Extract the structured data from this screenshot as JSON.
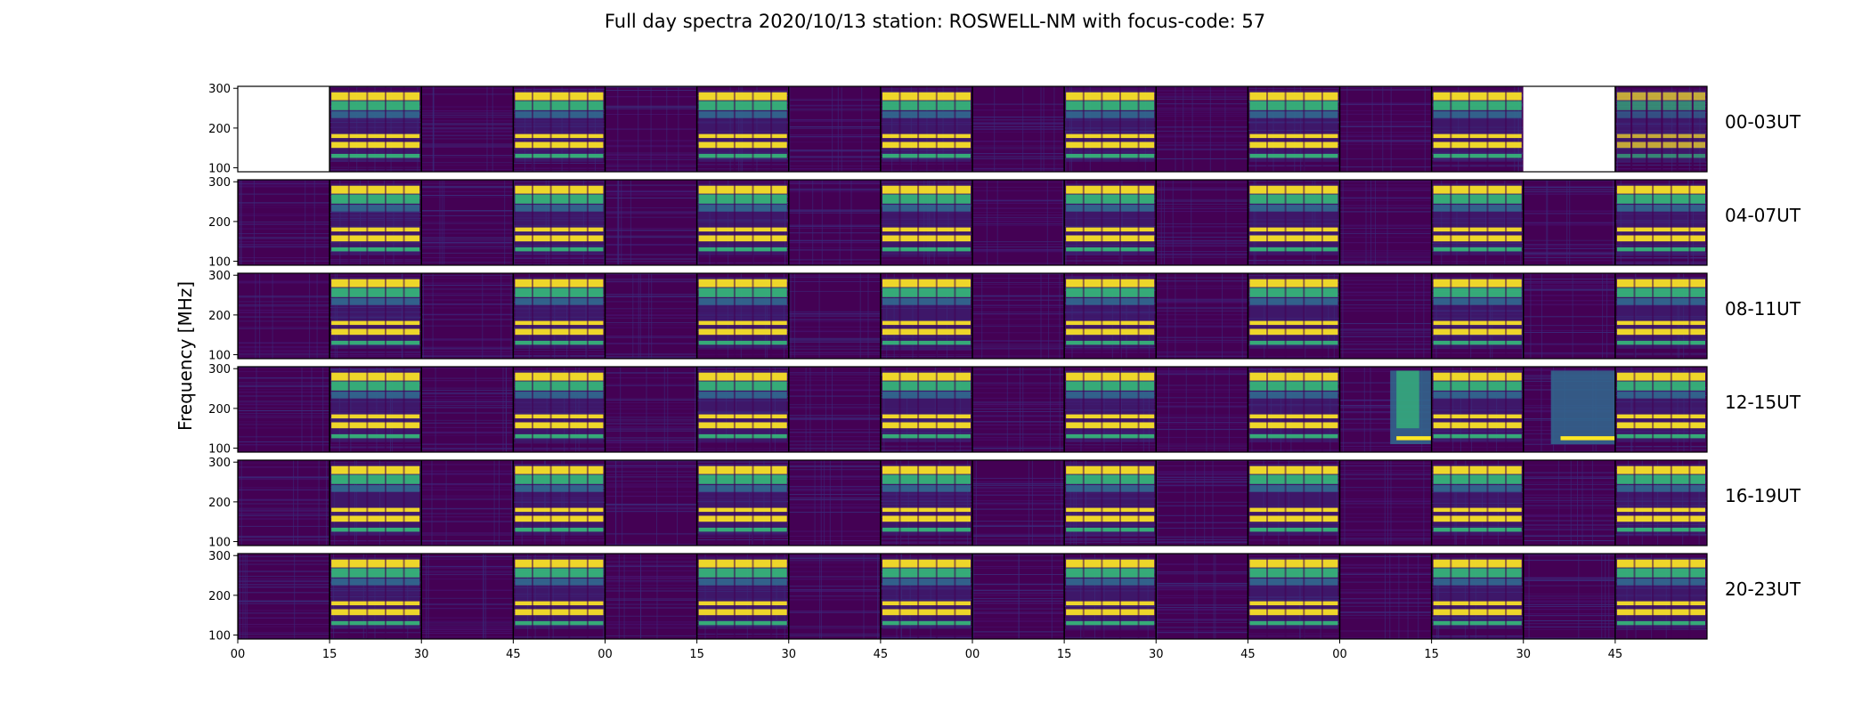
{
  "chart_data": {
    "type": "heatmap",
    "title": "Full day spectra 2020/10/13 station: ROSWELL-NM with focus-code: 57",
    "ylabel": "Frequency [MHz]",
    "xlabel": "",
    "ylim": [
      90,
      305
    ],
    "yticks": [
      100,
      200,
      300
    ],
    "xticks": [
      "00",
      "15",
      "30",
      "45",
      "00",
      "15",
      "30",
      "45",
      "00",
      "15",
      "30",
      "45",
      "00",
      "15",
      "30",
      "45"
    ],
    "colormap": "viridis",
    "rows": [
      {
        "label": "00-03UT",
        "segments": [
          "empty",
          "focus",
          "quiet",
          "focus",
          "quiet",
          "focus",
          "quiet",
          "focus",
          "quiet",
          "focus",
          "quiet",
          "focus",
          "quiet",
          "focus",
          "empty",
          "partial"
        ]
      },
      {
        "label": "04-07UT",
        "segments": [
          "quiet",
          "focus",
          "quiet",
          "focus",
          "quiet",
          "focus",
          "quiet",
          "focus",
          "quiet",
          "focus",
          "quiet",
          "focus",
          "quiet",
          "focus",
          "quiet",
          "focus"
        ]
      },
      {
        "label": "08-11UT",
        "segments": [
          "quiet",
          "focus",
          "quiet",
          "focus",
          "quiet",
          "focus",
          "quiet",
          "focus",
          "quiet",
          "focus",
          "quiet",
          "focus",
          "quiet",
          "focus",
          "quiet",
          "focus"
        ]
      },
      {
        "label": "12-15UT",
        "segments": [
          "quiet",
          "focus",
          "quiet",
          "focus",
          "quiet",
          "focus",
          "quiet",
          "focus",
          "quiet",
          "focus",
          "quiet",
          "focus",
          "burst",
          "focus",
          "burst2",
          "focus"
        ]
      },
      {
        "label": "16-19UT",
        "segments": [
          "quiet",
          "focus",
          "quiet",
          "focus",
          "quiet",
          "focus",
          "quiet",
          "focus",
          "quiet",
          "focus",
          "quiet",
          "focus",
          "quiet",
          "focus",
          "quiet",
          "focus"
        ]
      },
      {
        "label": "20-23UT",
        "segments": [
          "quiet",
          "focus",
          "quiet",
          "focus",
          "quiet",
          "focus",
          "quiet",
          "focus",
          "quiet",
          "focus",
          "quiet",
          "focus",
          "quiet",
          "focus",
          "quiet",
          "focus"
        ]
      }
    ],
    "focus_bands_mhz": [
      {
        "lo": 270,
        "hi": 290,
        "level": "high"
      },
      {
        "lo": 245,
        "hi": 268,
        "level": "mid"
      },
      {
        "lo": 225,
        "hi": 242,
        "level": "low"
      },
      {
        "lo": 175,
        "hi": 185,
        "level": "high"
      },
      {
        "lo": 150,
        "hi": 165,
        "level": "high"
      },
      {
        "lo": 125,
        "hi": 135,
        "level": "mid"
      }
    ],
    "colors": {
      "background": "#440154",
      "noise_a": "#46106b",
      "noise_b": "#3b2a7a",
      "low": "#31688e",
      "mid": "#35b779",
      "high": "#fde725",
      "empty": "#ffffff"
    }
  }
}
